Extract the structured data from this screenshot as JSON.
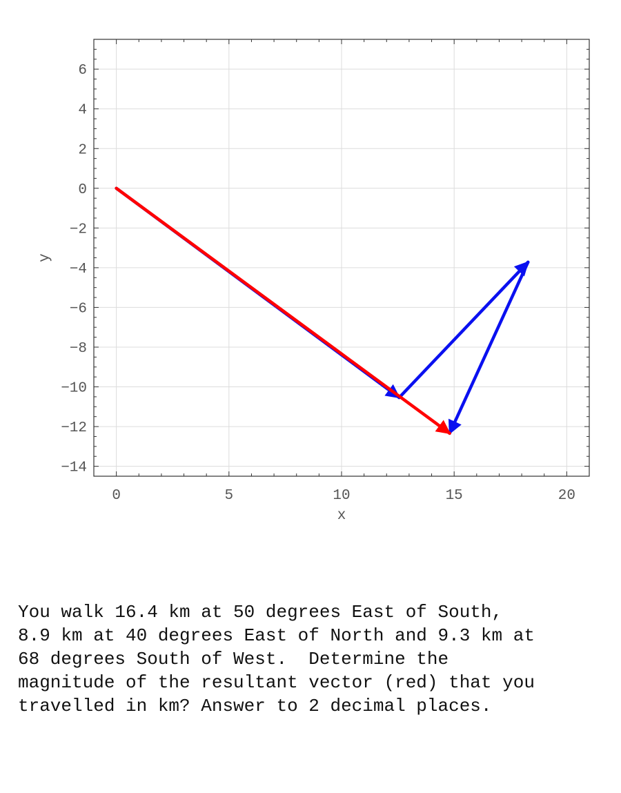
{
  "chart_data": {
    "type": "vector",
    "xlabel": "x",
    "ylabel": "y",
    "xlim": [
      -1,
      21
    ],
    "ylim": [
      -14.5,
      7.5
    ],
    "xticks": [
      0,
      5,
      10,
      15,
      20
    ],
    "yticks": [
      6,
      4,
      2,
      0,
      -2,
      -4,
      -6,
      -8,
      -10,
      -12,
      -14
    ],
    "grid": true,
    "vectors": [
      {
        "from": [
          0,
          0
        ],
        "to": [
          12.56,
          -10.54
        ],
        "color": "#0a10f0"
      },
      {
        "from": [
          12.56,
          -10.54
        ],
        "to": [
          18.28,
          -3.72
        ],
        "color": "#0a10f0"
      },
      {
        "from": [
          18.28,
          -3.72
        ],
        "to": [
          14.8,
          -12.34
        ],
        "color": "#0a10f0"
      },
      {
        "from": [
          0,
          0
        ],
        "to": [
          14.8,
          -12.34
        ],
        "color": "#ff0000"
      }
    ]
  },
  "question": {
    "lines": [
      "You walk 16.4 km at 50 degrees East of South,",
      "8.9 km at 40 degrees East of North and 9.3 km at",
      "68 degrees South of West.  Determine the",
      "magnitude of the resultant vector (red) that you",
      "travelled in km? Answer to 2 decimal places."
    ]
  }
}
